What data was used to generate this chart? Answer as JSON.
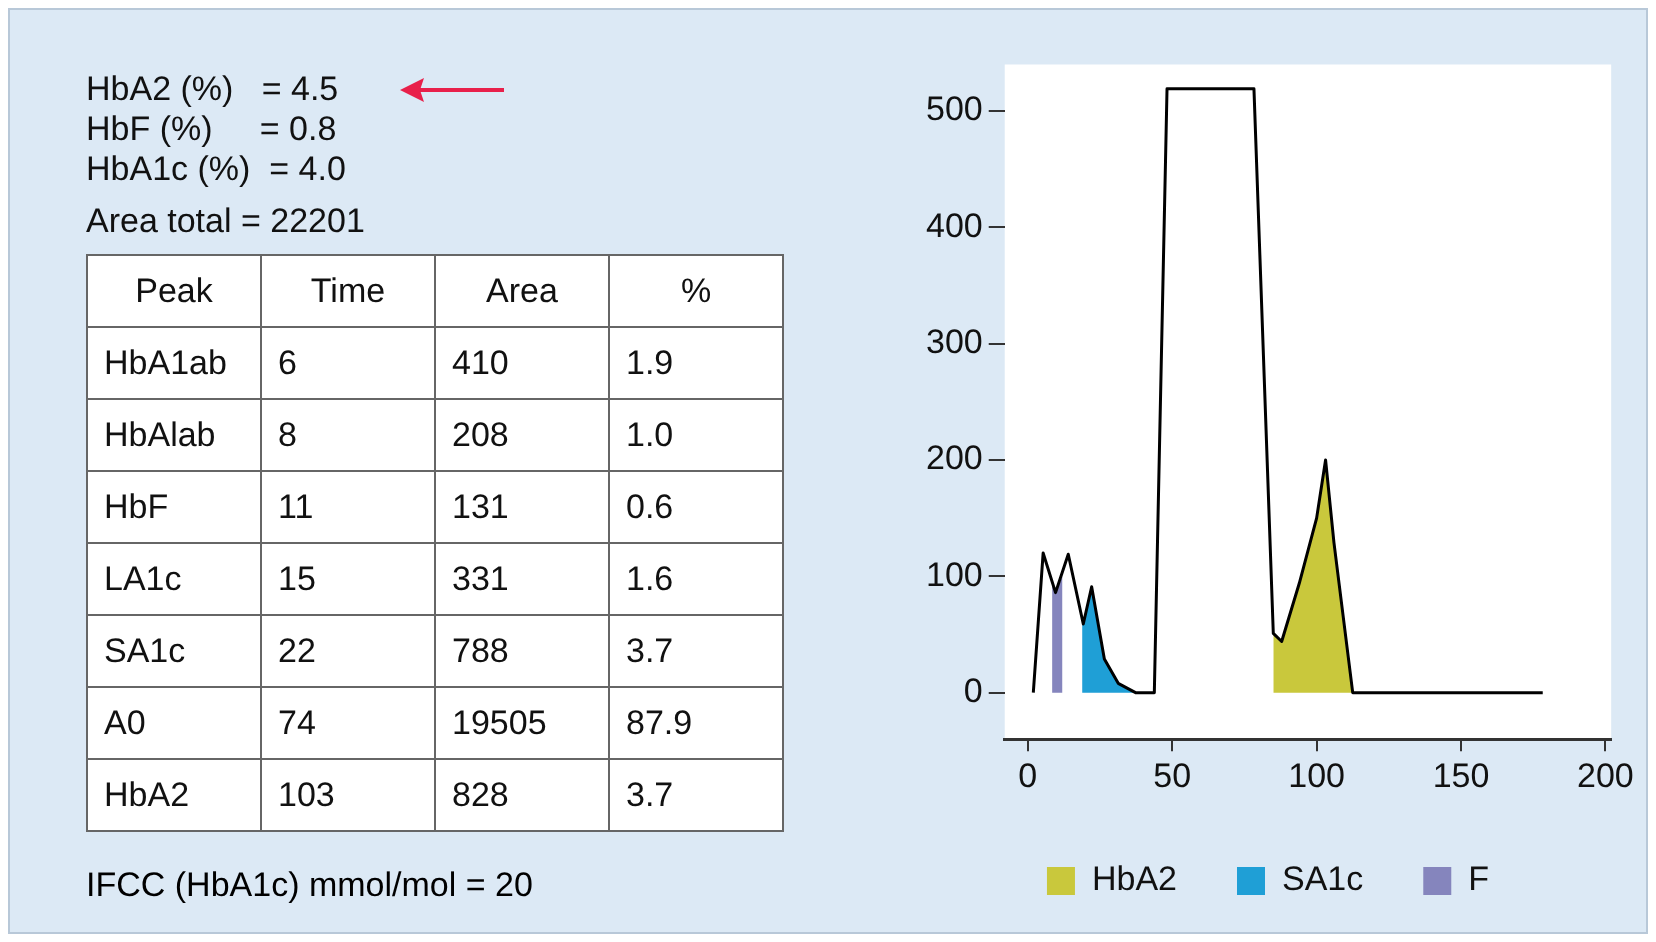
{
  "chart_data": {
    "type": "line",
    "annotations": [
      "HbA2 (%)   = 4.5",
      "HbF (%)     = 0.8",
      "HbA1c (%)  = 4.0",
      "Area total = 22201",
      "Peak",
      "Time",
      "Area",
      "%",
      "HbA1ab",
      "6",
      "410",
      "1.9",
      "HbAlab",
      "8",
      "208",
      "1.0",
      "HbF",
      "11",
      "131",
      "0.6",
      "LA1c",
      "15",
      "331",
      "1.6",
      "SA1c",
      "22",
      "788",
      "3.7",
      "A0",
      "74",
      "19505",
      "87.9",
      "HbA2",
      "103",
      "828",
      "3.7",
      "IFCC (HbA1c) mmol/mol = 20"
    ],
    "series": [
      {
        "type": "area",
        "name": "HbA2",
        "color": "#c9c83c",
        "x": [
          85,
          87.9,
          94,
          100,
          103.1,
          106,
          112.5
        ],
        "values": [
          51,
          44,
          94,
          150,
          200,
          129,
          0
        ]
      },
      {
        "type": "area",
        "name": "SA1c",
        "color": "#1f9fd6",
        "x": [
          18.8,
          19.2,
          22.1,
          26.5,
          31.3,
          37.3
        ],
        "values": [
          64,
          59,
          91,
          29,
          8,
          0
        ]
      },
      {
        "type": "area",
        "name": "F",
        "color": "#8585bd",
        "x": [
          8.4,
          9.6,
          12
        ],
        "values": [
          98,
          86,
          100
        ]
      },
      {
        "type": "line",
        "color": "#000000",
        "x": [
          1.9,
          5.3,
          9.6,
          14,
          19.2,
          22.1,
          26.5,
          31.3,
          37.3,
          43.8,
          48.2,
          78.3,
          85,
          87.9,
          94,
          100,
          103.1,
          106,
          112.5,
          178.3
        ],
        "values": [
          0,
          120,
          86,
          119,
          59,
          91,
          29,
          8,
          0,
          0,
          519,
          519,
          51,
          44,
          94,
          150,
          200,
          129,
          0,
          0
        ]
      }
    ],
    "xlim": [
      -8,
      202
    ],
    "xticks": [
      0,
      50,
      100,
      150,
      200
    ],
    "ylim": [
      -40,
      540
    ],
    "yticks": [
      0,
      100,
      200,
      300,
      400,
      500
    ],
    "grid": false,
    "legend": "bottom"
  }
}
